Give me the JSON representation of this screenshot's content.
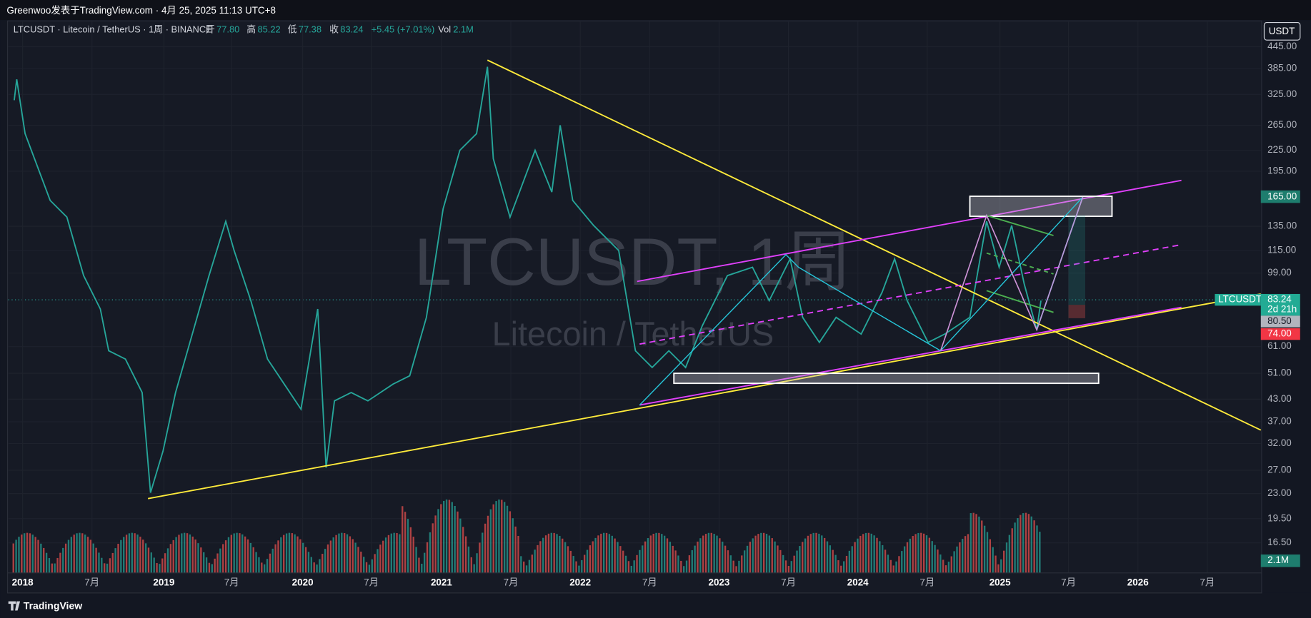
{
  "header": {
    "text": "Greenwoo发表于TradingView.com · 4月 25, 2025 11:13 UTC+8"
  },
  "legend": {
    "symbol": "LTCUSDT · Litecoin / TetherUS · 1周 · BINANCE",
    "open_label": "开",
    "open": "77.80",
    "high_label": "高",
    "high": "85.22",
    "low_label": "低",
    "low": "77.38",
    "close_label": "收",
    "close": "83.24",
    "change": "+5.45 (+7.01%)",
    "vol_label": "Vol",
    "vol": "2.1M"
  },
  "watermark": {
    "title": "LTCUSDT, 1周",
    "subtitle": "Litecoin / TetherUS"
  },
  "currency": "USDT",
  "price_axis": {
    "labels": [
      "445.00",
      "385.00",
      "325.00",
      "265.00",
      "225.00",
      "195.00",
      "135.00",
      "115.00",
      "99.00",
      "61.00",
      "51.00",
      "43.00",
      "37.00",
      "32.00",
      "27.00",
      "23.00",
      "19.50",
      "16.50"
    ],
    "tags": {
      "target": "165.00",
      "symbol": "LTCUSDT",
      "last": "83.24",
      "countdown": "2d 21h",
      "gray": "80.50",
      "stop": "74.00",
      "volume": "2.1M"
    }
  },
  "time_axis": {
    "labels": [
      "2018",
      "7月",
      "2019",
      "7月",
      "2020",
      "7月",
      "2021",
      "7月",
      "2022",
      "7月",
      "2023",
      "7月",
      "2024",
      "7月",
      "2025",
      "7月",
      "2026",
      "7月"
    ]
  },
  "footer": {
    "brand": "TradingView"
  }
}
